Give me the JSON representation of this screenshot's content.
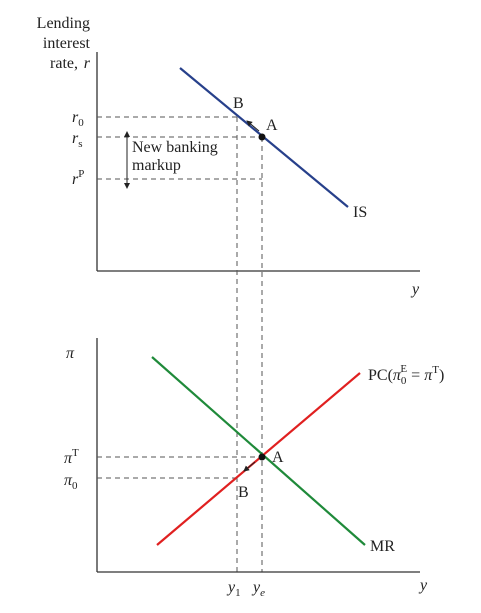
{
  "top_panel": {
    "y_axis_label": [
      "Lending",
      "interest",
      "rate,"
    ],
    "y_axis_symbol": "r",
    "r0": {
      "base": "r",
      "sub": "0"
    },
    "rs": {
      "base": "r",
      "sub": "s"
    },
    "rP": {
      "base": "r",
      "sup": "P"
    },
    "markup_label": [
      "New banking",
      "markup"
    ],
    "curve_label": "IS",
    "point_a": "A",
    "point_b": "B",
    "x_axis_label": "y"
  },
  "bottom_panel": {
    "y_axis_label": "π",
    "piT": {
      "base": "π",
      "sup": "T"
    },
    "pi0": {
      "base": "π",
      "sub": "0"
    },
    "mr_label": "MR",
    "pc_label": {
      "start": "PC(",
      "pi": "π",
      "sub": "0",
      "sup": "E",
      "mid": " = ",
      "pi2": "π",
      "sup2": "T",
      "end": ")"
    },
    "point_a": "A",
    "point_b": "B",
    "y1": {
      "base": "y",
      "sub": "1"
    },
    "ye": {
      "base": "y",
      "sub": "e"
    },
    "x_axis_label": "y"
  }
}
